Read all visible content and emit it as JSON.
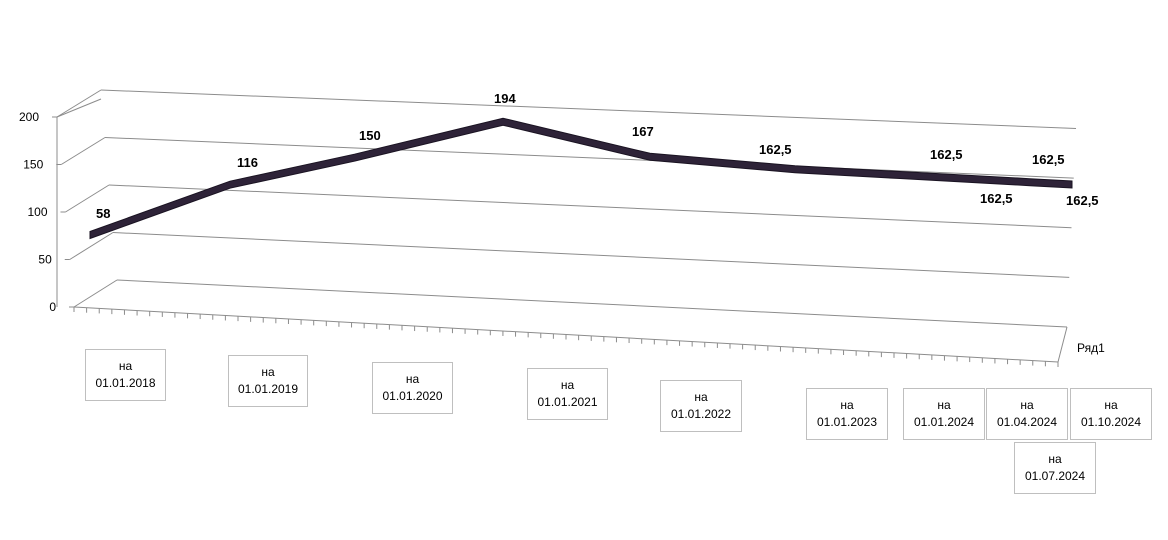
{
  "chart_data": {
    "type": "line",
    "categories": [
      [
        "на",
        "01.01.2018"
      ],
      [
        "на",
        "01.01.2019"
      ],
      [
        "на",
        "01.01.2020"
      ],
      [
        "на",
        "01.01.2021"
      ],
      [
        "на",
        "01.01.2022"
      ],
      [
        "на",
        "01.01.2023"
      ],
      [
        "на",
        "01.01.2024"
      ],
      [
        "на",
        "01.04.2024"
      ],
      [
        "на",
        "01.07.2024"
      ],
      [
        "на",
        "01.10.2024"
      ]
    ],
    "series": [
      {
        "name": "Ряд1",
        "values": [
          58,
          116,
          150,
          194,
          167,
          162.5,
          162.5,
          162.5,
          162.5,
          162.5
        ],
        "labels": [
          "58",
          "116",
          "150",
          "194",
          "167",
          "162,5",
          "162,5",
          "162,5",
          "162,5",
          "162,5"
        ],
        "color": "#2e2338"
      }
    ],
    "yticks": [
      "0",
      "50",
      "100",
      "150",
      "200"
    ],
    "ylim": [
      0,
      200
    ],
    "grid": true,
    "style": "3d-line",
    "legend": "none"
  }
}
